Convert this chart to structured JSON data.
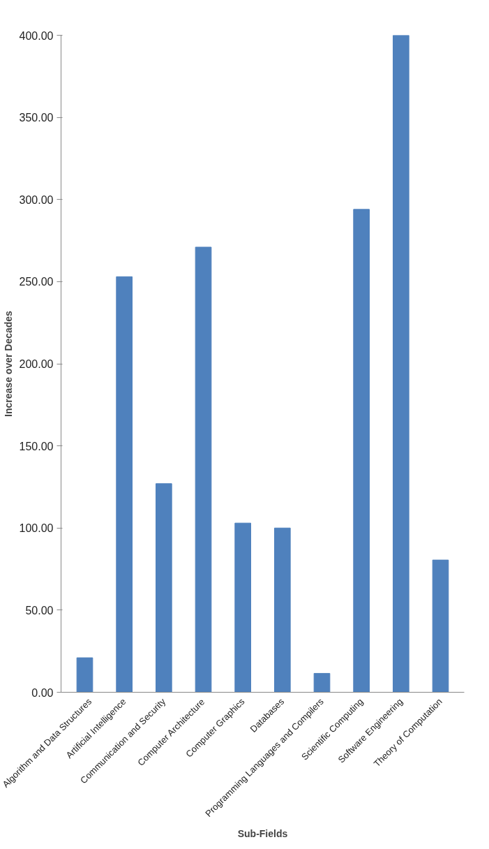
{
  "chart_data": {
    "type": "bar",
    "xlabel": "Sub-Fields",
    "ylabel": "Increase over Decades",
    "categories": [
      "Algorithm and Data Structures",
      "Artificial Intelligence",
      "Communication and Security",
      "Computer Architecture",
      "Computer Graphics",
      "Databases",
      "Programming Languages and Compilers",
      "Scientific Computing",
      "Software Engineering",
      "Theory of Computation"
    ],
    "values": [
      21,
      253,
      127,
      271,
      103,
      100,
      11.5,
      294,
      400,
      80.5
    ],
    "color": "#4f81bd",
    "ylim": [
      0,
      400
    ],
    "yticks": [
      {
        "value": 0,
        "label": "0.00"
      },
      {
        "value": 50,
        "label": "50.00"
      },
      {
        "value": 100,
        "label": "100.00"
      },
      {
        "value": 150,
        "label": "150.00"
      },
      {
        "value": 200,
        "label": "200.00"
      },
      {
        "value": 250,
        "label": "250.00"
      },
      {
        "value": 300,
        "label": "300.00"
      },
      {
        "value": 350,
        "label": "350.00"
      },
      {
        "value": 400,
        "label": "400.00"
      }
    ],
    "grid": false
  }
}
